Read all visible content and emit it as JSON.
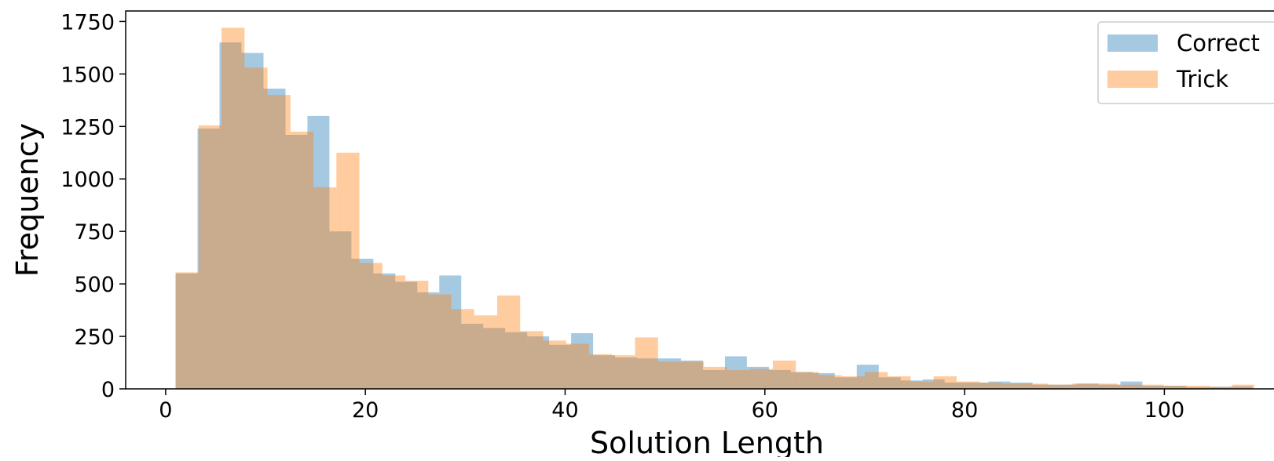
{
  "chart_data": {
    "type": "bar",
    "subtype": "histogram-overlay",
    "title": "",
    "xlabel": "Solution Length",
    "ylabel": "Frequency",
    "xlim": [
      -4,
      112
    ],
    "ylim": [
      0,
      1800
    ],
    "x_ticks": [
      0,
      20,
      40,
      60,
      80,
      100
    ],
    "y_ticks": [
      0,
      250,
      500,
      750,
      1000,
      1250,
      1500,
      1750
    ],
    "grid": false,
    "legend_position": "top-right",
    "series": [
      {
        "name": "Correct",
        "color": "#1f77b4",
        "opacity": 0.4,
        "bins": [
          [
            1.0,
            3.2,
            550
          ],
          [
            3.2,
            5.4,
            1240
          ],
          [
            5.4,
            7.6,
            1650
          ],
          [
            7.6,
            9.8,
            1600
          ],
          [
            9.8,
            12.0,
            1430
          ],
          [
            12.0,
            14.2,
            1210
          ],
          [
            14.2,
            16.4,
            1300
          ],
          [
            16.4,
            18.6,
            750
          ],
          [
            18.6,
            20.8,
            620
          ],
          [
            20.8,
            23.0,
            550
          ],
          [
            23.0,
            25.2,
            510
          ],
          [
            25.2,
            27.4,
            460
          ],
          [
            27.4,
            29.6,
            540
          ],
          [
            29.6,
            31.8,
            310
          ],
          [
            31.8,
            34.0,
            290
          ],
          [
            34.0,
            36.2,
            270
          ],
          [
            36.2,
            38.4,
            250
          ],
          [
            38.4,
            40.6,
            210
          ],
          [
            40.6,
            42.8,
            265
          ],
          [
            42.8,
            45.0,
            160
          ],
          [
            45.0,
            47.2,
            150
          ],
          [
            47.2,
            49.4,
            145
          ],
          [
            49.4,
            51.6,
            145
          ],
          [
            51.6,
            53.8,
            135
          ],
          [
            53.8,
            56.0,
            90
          ],
          [
            56.0,
            58.2,
            155
          ],
          [
            58.2,
            60.4,
            105
          ],
          [
            60.4,
            62.6,
            90
          ],
          [
            62.6,
            64.8,
            80
          ],
          [
            64.8,
            67.0,
            75
          ],
          [
            67.0,
            69.2,
            55
          ],
          [
            69.2,
            71.4,
            115
          ],
          [
            71.4,
            73.6,
            55
          ],
          [
            73.6,
            75.8,
            40
          ],
          [
            75.8,
            78.0,
            45
          ],
          [
            78.0,
            80.2,
            30
          ],
          [
            80.2,
            82.4,
            30
          ],
          [
            82.4,
            84.6,
            35
          ],
          [
            84.6,
            86.8,
            30
          ],
          [
            86.8,
            89.0,
            20
          ],
          [
            89.0,
            91.2,
            20
          ],
          [
            91.2,
            93.4,
            25
          ],
          [
            93.4,
            95.6,
            20
          ],
          [
            95.6,
            97.8,
            35
          ],
          [
            97.8,
            100.0,
            15
          ],
          [
            100.0,
            102.2,
            15
          ],
          [
            102.2,
            104.4,
            8
          ],
          [
            104.4,
            106.6,
            10
          ],
          [
            106.6,
            108.8,
            12
          ]
        ]
      },
      {
        "name": "Trick",
        "color": "#ff7f0e",
        "opacity": 0.4,
        "bins": [
          [
            1.0,
            3.3,
            555
          ],
          [
            3.3,
            5.6,
            1255
          ],
          [
            5.6,
            7.9,
            1720
          ],
          [
            7.9,
            10.2,
            1530
          ],
          [
            10.2,
            12.5,
            1400
          ],
          [
            12.5,
            14.8,
            1225
          ],
          [
            14.8,
            17.1,
            960
          ],
          [
            17.1,
            19.4,
            1125
          ],
          [
            19.4,
            21.7,
            600
          ],
          [
            21.7,
            24.0,
            540
          ],
          [
            24.0,
            26.3,
            515
          ],
          [
            26.3,
            28.6,
            450
          ],
          [
            28.6,
            30.9,
            380
          ],
          [
            30.9,
            33.2,
            350
          ],
          [
            33.2,
            35.5,
            445
          ],
          [
            35.5,
            37.8,
            275
          ],
          [
            37.8,
            40.1,
            230
          ],
          [
            40.1,
            42.4,
            215
          ],
          [
            42.4,
            44.7,
            165
          ],
          [
            44.7,
            47.0,
            160
          ],
          [
            47.0,
            49.3,
            245
          ],
          [
            49.3,
            51.6,
            130
          ],
          [
            51.6,
            53.9,
            130
          ],
          [
            53.9,
            56.2,
            105
          ],
          [
            56.2,
            58.5,
            90
          ],
          [
            58.5,
            60.8,
            95
          ],
          [
            60.8,
            63.1,
            135
          ],
          [
            63.1,
            65.4,
            80
          ],
          [
            65.4,
            67.7,
            65
          ],
          [
            67.7,
            70.0,
            60
          ],
          [
            70.0,
            72.3,
            80
          ],
          [
            72.3,
            74.6,
            60
          ],
          [
            74.6,
            76.9,
            35
          ],
          [
            76.9,
            79.2,
            60
          ],
          [
            79.2,
            81.5,
            35
          ],
          [
            81.5,
            83.8,
            30
          ],
          [
            83.8,
            86.1,
            25
          ],
          [
            86.1,
            88.4,
            25
          ],
          [
            88.4,
            90.7,
            20
          ],
          [
            90.7,
            93.0,
            25
          ],
          [
            93.0,
            95.3,
            25
          ],
          [
            95.3,
            97.6,
            20
          ],
          [
            97.6,
            99.9,
            20
          ],
          [
            99.9,
            102.2,
            15
          ],
          [
            102.2,
            104.5,
            15
          ],
          [
            104.5,
            106.8,
            10
          ],
          [
            106.8,
            109.0,
            20
          ]
        ]
      }
    ]
  }
}
